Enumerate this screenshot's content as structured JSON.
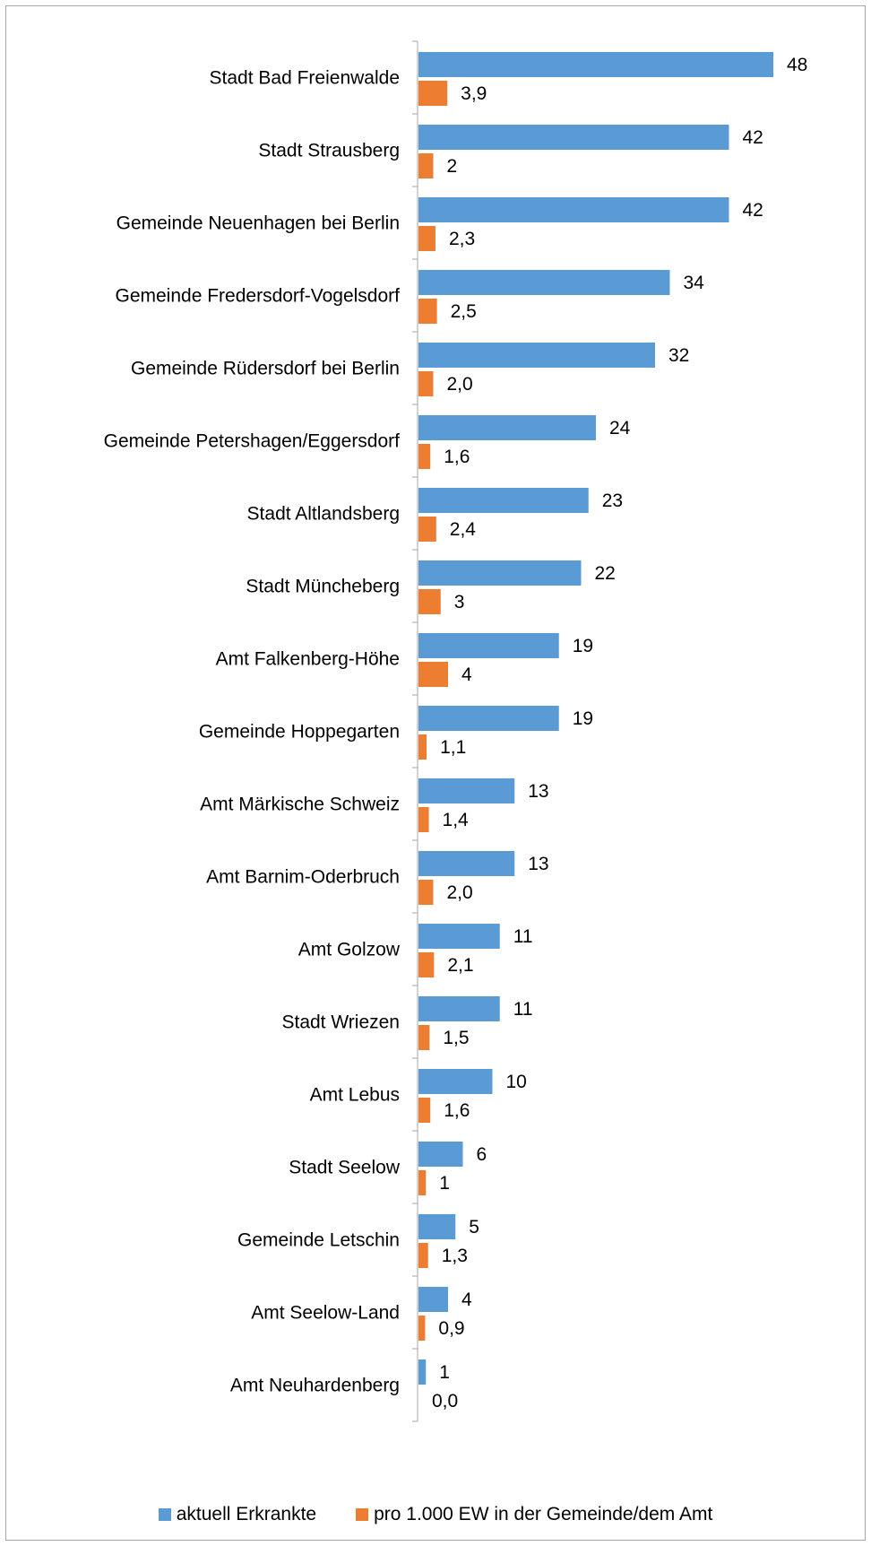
{
  "chart_data": {
    "type": "bar",
    "orientation": "horizontal",
    "categories": [
      "Stadt Bad Freienwalde",
      "Stadt Strausberg",
      "Gemeinde Neuenhagen bei Berlin",
      "Gemeinde Fredersdorf-Vogelsdorf",
      "Gemeinde Rüdersdorf bei Berlin",
      "Gemeinde Petershagen/Eggersdorf",
      "Stadt Altlandsberg",
      "Stadt Müncheberg",
      "Amt Falkenberg-Höhe",
      "Gemeinde Hoppegarten",
      "Amt Märkische Schweiz",
      "Amt Barnim-Oderbruch",
      "Amt Golzow",
      "Stadt Wriezen",
      "Amt Lebus",
      "Stadt Seelow",
      "Gemeinde Letschin",
      "Amt Seelow-Land",
      "Amt Neuhardenberg"
    ],
    "series": [
      {
        "name": "aktuell Erkrankte",
        "color": "#5b9bd5",
        "values": [
          48,
          42,
          42,
          34,
          32,
          24,
          23,
          22,
          19,
          19,
          13,
          13,
          11,
          11,
          10,
          6,
          5,
          4,
          1
        ],
        "labels": [
          "48",
          "42",
          "42",
          "34",
          "32",
          "24",
          "23",
          "22",
          "19",
          "19",
          "13",
          "13",
          "11",
          "11",
          "10",
          "6",
          "5",
          "4",
          "1"
        ]
      },
      {
        "name": "pro 1.000 EW in der Gemeinde/dem Amt",
        "color": "#ed7d31",
        "values": [
          3.9,
          2,
          2.3,
          2.5,
          2.0,
          1.6,
          2.4,
          3,
          4,
          1.1,
          1.4,
          2.0,
          2.1,
          1.5,
          1.6,
          1,
          1.3,
          0.9,
          0.0
        ],
        "labels": [
          "3,9",
          "2",
          "2,3",
          "2,5",
          "2,0",
          "1,6",
          "2,4",
          "3",
          "4",
          "1,1",
          "1,4",
          "2,0",
          "2,1",
          "1,5",
          "1,6",
          "1",
          "1,3",
          "0,9",
          "0,0"
        ]
      }
    ],
    "xlim": [
      0,
      50
    ],
    "grid": false,
    "legend_position": "bottom"
  }
}
